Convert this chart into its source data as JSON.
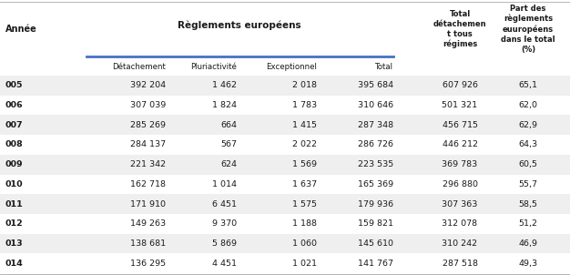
{
  "years": [
    "005",
    "006",
    "007",
    "008",
    "009",
    "010",
    "011",
    "012",
    "013",
    "014"
  ],
  "col1": [
    "392 204",
    "307 039",
    "285 269",
    "284 137",
    "221 342",
    "162 718",
    "171 910",
    "149 263",
    "138 681",
    "136 295"
  ],
  "col2": [
    "1 462",
    "1 824",
    "664",
    "567",
    "624",
    "1 014",
    "6 451",
    "9 370",
    "5 869",
    "4 451"
  ],
  "col3": [
    "2 018",
    "1 783",
    "1 415",
    "2 022",
    "1 569",
    "1 637",
    "1 575",
    "1 188",
    "1 060",
    "1 021"
  ],
  "col4": [
    "395 684",
    "310 646",
    "287 348",
    "286 726",
    "223 535",
    "165 369",
    "179 936",
    "159 821",
    "145 610",
    "141 767"
  ],
  "col5": [
    "607 926",
    "501 321",
    "456 715",
    "446 212",
    "369 783",
    "296 880",
    "307 363",
    "312 078",
    "310 242",
    "287 518"
  ],
  "col6": [
    "65,1",
    "62,0",
    "62,9",
    "64,3",
    "60,5",
    "55,7",
    "58,5",
    "51,2",
    "46,9",
    "49,3"
  ],
  "bg_color": "#ffffff",
  "text_color": "#1a1a1a",
  "line_color": "#4472c4",
  "alt_row_color": "#efefef",
  "font_size_header_main": 7.0,
  "font_size_header_sub": 6.2,
  "font_size_data": 6.8
}
